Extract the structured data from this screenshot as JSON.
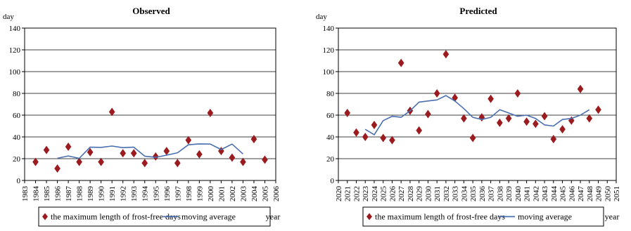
{
  "figure": {
    "y_unit": "day",
    "x_unit": "year"
  },
  "chart_data": [
    {
      "type": "scatter",
      "title": "Observed",
      "ylabel": "day",
      "xlabel": "year",
      "ylim": [
        0,
        140
      ],
      "yticks": [
        0,
        20,
        40,
        60,
        80,
        100,
        120,
        140
      ],
      "xlim": [
        1983,
        2006
      ],
      "xticks": [
        1983,
        1984,
        1985,
        1986,
        1987,
        1988,
        1989,
        1990,
        1991,
        1992,
        1993,
        1994,
        1995,
        1996,
        1997,
        1998,
        1999,
        2000,
        2001,
        2002,
        2003,
        2004,
        2005,
        2006
      ],
      "grid": "horizontal",
      "legend_position": "bottom",
      "legend": [
        "the maximum length of frost-free days",
        "moving average"
      ],
      "series": [
        {
          "name": "the maximum length of frost-free days",
          "kind": "markers",
          "marker": "diamond",
          "color": "#9B1B1F",
          "x": [
            1984,
            1985,
            1986,
            1987,
            1988,
            1989,
            1990,
            1991,
            1992,
            1993,
            1994,
            1995,
            1996,
            1997,
            1998,
            1999,
            2000,
            2001,
            2002,
            2003,
            2004,
            2005
          ],
          "y": [
            17,
            28,
            11,
            31,
            17,
            26,
            17,
            63,
            25,
            25,
            16,
            22,
            27,
            16,
            37,
            24,
            62,
            27,
            21,
            17,
            38,
            19
          ]
        },
        {
          "name": "moving average",
          "kind": "line",
          "color": "#4A6FB0",
          "x": [
            1986,
            1987,
            1988,
            1989,
            1990,
            1991,
            1992,
            1993,
            1994,
            1995,
            1996,
            1997,
            1998,
            1999,
            2000,
            2001,
            2002,
            2003
          ],
          "y": [
            20.4,
            22.5,
            20.3,
            30.6,
            30.4,
            31.6,
            30.1,
            30.6,
            22.3,
            21.2,
            23.2,
            25.4,
            32.8,
            33.6,
            33.4,
            28.4,
            33.4,
            24.3
          ]
        }
      ]
    },
    {
      "type": "scatter",
      "title": "Predicted",
      "ylabel": "day",
      "xlabel": "year",
      "ylim": [
        0,
        140
      ],
      "yticks": [
        0,
        20,
        40,
        60,
        80,
        100,
        120,
        140
      ],
      "xlim": [
        2020,
        2051
      ],
      "xticks": [
        2020,
        2021,
        2022,
        2023,
        2024,
        2025,
        2026,
        2027,
        2028,
        2029,
        2030,
        2031,
        2032,
        2033,
        2034,
        2035,
        2036,
        2037,
        2038,
        2039,
        2040,
        2041,
        2042,
        2043,
        2044,
        2045,
        2046,
        2047,
        2048,
        2049,
        2050,
        2051
      ],
      "grid": "horizontal",
      "legend_position": "bottom",
      "legend": [
        "the maximum length of frost-free days",
        "moving average"
      ],
      "series": [
        {
          "name": "the maximum length of frost-free days",
          "kind": "markers",
          "marker": "diamond",
          "color": "#9B1B1F",
          "x": [
            2021,
            2022,
            2023,
            2024,
            2025,
            2026,
            2027,
            2028,
            2029,
            2030,
            2031,
            2032,
            2033,
            2034,
            2035,
            2036,
            2037,
            2038,
            2039,
            2040,
            2041,
            2042,
            2043,
            2044,
            2045,
            2046,
            2047,
            2048,
            2049
          ],
          "y": [
            62,
            44,
            40,
            51,
            39,
            37,
            108,
            64,
            46,
            61,
            80,
            116,
            76,
            57,
            39,
            58,
            75,
            53,
            57,
            80,
            54,
            52,
            59,
            38,
            47,
            55,
            84,
            57,
            65
          ]
        },
        {
          "name": "moving average",
          "kind": "line",
          "color": "#4A6FB0",
          "x": [
            2023,
            2024,
            2025,
            2026,
            2027,
            2028,
            2029,
            2030,
            2031,
            2032,
            2033,
            2034,
            2035,
            2036,
            2037,
            2038,
            2039,
            2040,
            2041,
            2042,
            2043,
            2044,
            2045,
            2046,
            2047,
            2048
          ],
          "y": [
            47,
            42,
            55,
            59,
            58,
            64,
            72,
            73,
            74,
            78,
            73,
            66,
            58,
            56,
            58,
            65,
            62,
            59,
            60,
            57,
            51,
            50,
            56,
            57,
            60,
            65
          ]
        }
      ]
    }
  ]
}
